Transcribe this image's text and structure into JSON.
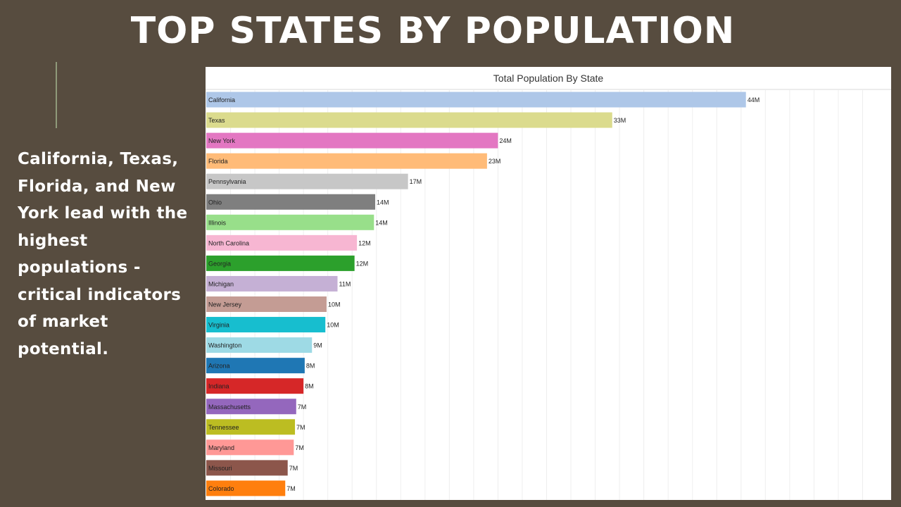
{
  "slide": {
    "title": "TOP STATES BY POPULATION",
    "body": "California, Texas, Florida, and New York lead with the highest populations - critical indicators of market potential."
  },
  "colors": {
    "background": "#574c3f",
    "accent_line": "#8f9a7a",
    "panel": "#ffffff"
  },
  "chart_data": {
    "type": "bar",
    "orientation": "horizontal",
    "title": "Total Population By State",
    "xlabel": "",
    "ylabel": "",
    "grid": true,
    "legend": "none",
    "xlim": [
      0,
      56
    ],
    "unit_suffix": "M",
    "categories": [
      "California",
      "Texas",
      "New York",
      "Florida",
      "Pennsylvania",
      "Ohio",
      "Illinois",
      "North Carolina",
      "Georgia",
      "Michigan",
      "New Jersey",
      "Virginia",
      "Washington",
      "Arizona",
      "Indiana",
      "Massachusetts",
      "Tennessee",
      "Maryland",
      "Missouri",
      "Colorado"
    ],
    "values": [
      44,
      33,
      24,
      23,
      17,
      14,
      14,
      12,
      12,
      11,
      10,
      10,
      9,
      8,
      8,
      7,
      7,
      7,
      7,
      7
    ],
    "bar_lengths": [
      44.4,
      33.4,
      24.0,
      23.1,
      16.6,
      13.9,
      13.8,
      12.4,
      12.2,
      10.8,
      9.9,
      9.8,
      8.7,
      8.1,
      8.0,
      7.4,
      7.3,
      7.2,
      6.7,
      6.5
    ],
    "value_labels": [
      "44M",
      "33M",
      "24M",
      "23M",
      "17M",
      "14M",
      "14M",
      "12M",
      "12M",
      "11M",
      "10M",
      "10M",
      "9M",
      "8M",
      "8M",
      "7M",
      "7M",
      "7M",
      "7M",
      "7M"
    ],
    "bar_colors": [
      "#aec7e8",
      "#dbdb8d",
      "#e377c2",
      "#ffbb78",
      "#c7c7c7",
      "#7f7f7f",
      "#98df8a",
      "#f7b6d2",
      "#2ca02c",
      "#c5b0d5",
      "#c49c94",
      "#17becf",
      "#9edae5",
      "#1f77b4",
      "#d62728",
      "#9467bd",
      "#bcbd22",
      "#ff9896",
      "#8c564b",
      "#ff7f0e"
    ]
  }
}
